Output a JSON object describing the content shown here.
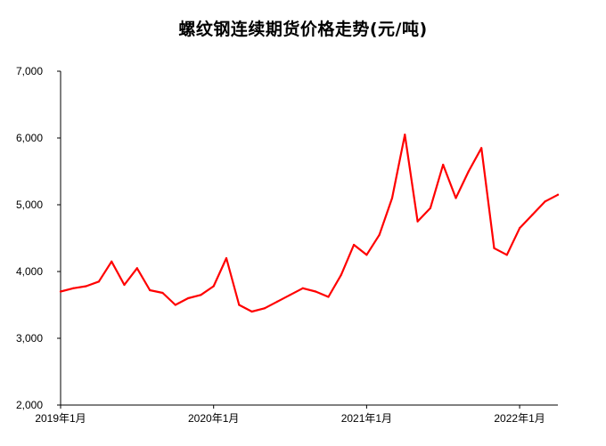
{
  "chart_data": {
    "type": "line",
    "title": "螺纹钢连续期货价格走势(元/吨)",
    "xlabel": "",
    "ylabel": "",
    "ylim": [
      2000,
      7000
    ],
    "yticks": [
      "2,000",
      "3,000",
      "4,000",
      "5,000",
      "6,000",
      "7,000"
    ],
    "ytick_values": [
      2000,
      3000,
      4000,
      5000,
      6000,
      7000
    ],
    "xticks": [
      "2019年1月",
      "2020年1月",
      "2021年1月",
      "2022年1月"
    ],
    "xtick_values": [
      "2019-01",
      "2020-01",
      "2021-01",
      "2022-01"
    ],
    "grid": false,
    "legend": "none",
    "color": "#ff0000",
    "series": [
      {
        "x": [
          "2019-01",
          "2019-02",
          "2019-03",
          "2019-04",
          "2019-05",
          "2019-06",
          "2019-07",
          "2019-08",
          "2019-09",
          "2019-10",
          "2019-11",
          "2019-12",
          "2020-01",
          "2020-02",
          "2020-03",
          "2020-04",
          "2020-05",
          "2020-06",
          "2020-07",
          "2020-08",
          "2020-09",
          "2020-10",
          "2020-11",
          "2020-12",
          "2021-01",
          "2021-02",
          "2021-03",
          "2021-04",
          "2021-05",
          "2021-06",
          "2021-07",
          "2021-08",
          "2021-09",
          "2021-10",
          "2021-11",
          "2021-12",
          "2022-01",
          "2022-02",
          "2022-03",
          "2022-04"
        ],
        "values": [
          3700,
          3750,
          3780,
          3850,
          4150,
          3800,
          4050,
          3720,
          3680,
          3500,
          3600,
          3650,
          3780,
          4200,
          3500,
          3400,
          3450,
          3550,
          3650,
          3750,
          3700,
          3620,
          3950,
          4400,
          4250,
          4550,
          5100,
          6050,
          4750,
          4950,
          5600,
          5100,
          5500,
          5850,
          4350,
          4250,
          4650,
          4850,
          5050,
          5150
        ]
      }
    ]
  }
}
